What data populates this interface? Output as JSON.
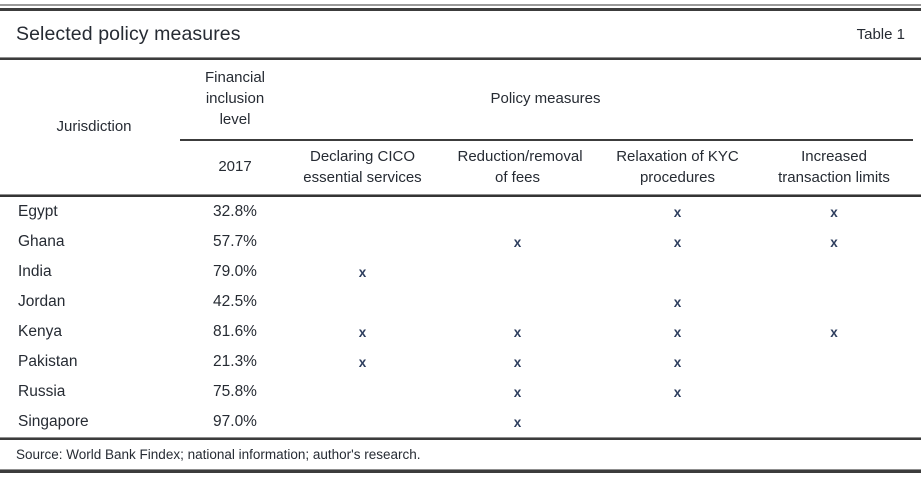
{
  "page": {
    "title": "Selected policy measures",
    "table_label": "Table 1",
    "source_note": "Source: World Bank Findex; national information; author's research."
  },
  "colors": {
    "text": "#262b33",
    "mark": "#2e3e5e",
    "rule_dark": "#3c3c3c",
    "rule_gray": "#8f8f8f"
  },
  "header": {
    "jurisdiction_label": "Jurisdiction",
    "fi_group_label": "Financial inclusion level",
    "fi_year_label": "2017",
    "policy_group_label": "Policy measures",
    "policy_column_labels": [
      "Declaring CICO essential services",
      "Reduction/removal of fees",
      "Relaxation of KYC procedures",
      "Increased transaction limits"
    ]
  },
  "rows": [
    {
      "jurisdiction": "Egypt",
      "fi_2017": "32.8%",
      "cico": "",
      "fees": "",
      "kyc": "x",
      "limits": "x"
    },
    {
      "jurisdiction": "Ghana",
      "fi_2017": "57.7%",
      "cico": "",
      "fees": "x",
      "kyc": "x",
      "limits": "x"
    },
    {
      "jurisdiction": "India",
      "fi_2017": "79.0%",
      "cico": "x",
      "fees": "",
      "kyc": "",
      "limits": ""
    },
    {
      "jurisdiction": "Jordan",
      "fi_2017": "42.5%",
      "cico": "",
      "fees": "",
      "kyc": "x",
      "limits": ""
    },
    {
      "jurisdiction": "Kenya",
      "fi_2017": "81.6%",
      "cico": "x",
      "fees": "x",
      "kyc": "x",
      "limits": "x"
    },
    {
      "jurisdiction": "Pakistan",
      "fi_2017": "21.3%",
      "cico": "x",
      "fees": "x",
      "kyc": "x",
      "limits": ""
    },
    {
      "jurisdiction": "Russia",
      "fi_2017": "75.8%",
      "cico": "",
      "fees": "x",
      "kyc": "x",
      "limits": ""
    },
    {
      "jurisdiction": "Singapore",
      "fi_2017": "97.0%",
      "cico": "",
      "fees": "x",
      "kyc": "",
      "limits": ""
    }
  ]
}
